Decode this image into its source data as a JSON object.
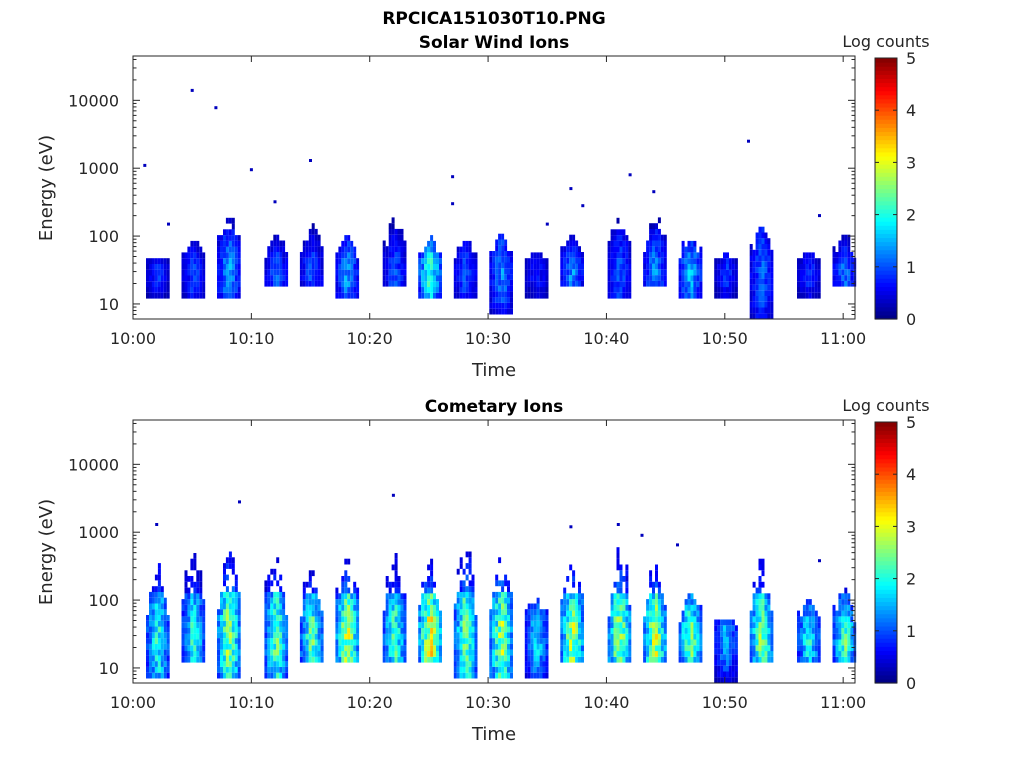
{
  "figure_title": "RPCICA151030T10.PNG",
  "chart_data": [
    {
      "type": "heatmap",
      "title": "Solar Wind Ions",
      "xlabel": "Time",
      "ylabel": "Energy (eV)",
      "y_scale": "log",
      "xlim": [
        "10:00",
        "11:01"
      ],
      "ylim": [
        6,
        45000
      ],
      "x_tick_labels": [
        "10:00",
        "10:10",
        "10:20",
        "10:30",
        "10:40",
        "10:50",
        "11:00"
      ],
      "y_tick_labels": [
        "10",
        "100",
        "1000",
        "10000"
      ],
      "y_tick_values": [
        10,
        100,
        1000,
        10000
      ],
      "colorbar": {
        "label": "Log counts",
        "range": [
          0,
          5
        ],
        "ticks": [
          "0",
          "1",
          "2",
          "3",
          "4",
          "5"
        ],
        "colormap": "jet"
      },
      "grid": false,
      "bursts": [
        {
          "t": "10:02",
          "lo": 12,
          "hi": 45,
          "peak": 1.0
        },
        {
          "t": "10:05",
          "lo": 12,
          "hi": 80,
          "peak": 1.1
        },
        {
          "t": "10:08",
          "lo": 12,
          "hi": 200,
          "peak": 1.6
        },
        {
          "t": "10:12",
          "lo": 18,
          "hi": 100,
          "peak": 1.3
        },
        {
          "t": "10:15",
          "lo": 18,
          "hi": 150,
          "peak": 1.2
        },
        {
          "t": "10:18",
          "lo": 12,
          "hi": 100,
          "peak": 1.6
        },
        {
          "t": "10:22",
          "lo": 18,
          "hi": 200,
          "peak": 1.2
        },
        {
          "t": "10:25",
          "lo": 12,
          "hi": 90,
          "peak": 2.4
        },
        {
          "t": "10:28",
          "lo": 12,
          "hi": 80,
          "peak": 1.2
        },
        {
          "t": "10:31",
          "lo": 7,
          "hi": 100,
          "peak": 1.5
        },
        {
          "t": "10:34",
          "lo": 12,
          "hi": 50,
          "peak": 0.9
        },
        {
          "t": "10:37",
          "lo": 18,
          "hi": 100,
          "peak": 1.5
        },
        {
          "t": "10:41",
          "lo": 12,
          "hi": 200,
          "peak": 1.2
        },
        {
          "t": "10:44",
          "lo": 18,
          "hi": 250,
          "peak": 1.5
        },
        {
          "t": "10:47",
          "lo": 12,
          "hi": 90,
          "peak": 1.8
        },
        {
          "t": "10:50",
          "lo": 12,
          "hi": 50,
          "peak": 1.0
        },
        {
          "t": "10:53",
          "lo": 6,
          "hi": 150,
          "peak": 1.3
        },
        {
          "t": "10:57",
          "lo": 12,
          "hi": 50,
          "peak": 1.0
        },
        {
          "t": "11:00",
          "lo": 18,
          "hi": 100,
          "peak": 1.4
        }
      ],
      "points": [
        {
          "t": "10:01",
          "e": 1100,
          "v": 0.3
        },
        {
          "t": "10:05",
          "e": 14000,
          "v": 0.3
        },
        {
          "t": "10:07",
          "e": 7800,
          "v": 0.3
        },
        {
          "t": "10:10",
          "e": 950,
          "v": 0.3
        },
        {
          "t": "10:12",
          "e": 320,
          "v": 0.3
        },
        {
          "t": "10:15",
          "e": 1300,
          "v": 0.3
        },
        {
          "t": "10:27",
          "e": 750,
          "v": 0.3
        },
        {
          "t": "10:27",
          "e": 300,
          "v": 0.3
        },
        {
          "t": "10:37",
          "e": 500,
          "v": 0.3
        },
        {
          "t": "10:38",
          "e": 280,
          "v": 0.3
        },
        {
          "t": "10:42",
          "e": 800,
          "v": 0.3
        },
        {
          "t": "10:44",
          "e": 450,
          "v": 0.3
        },
        {
          "t": "10:52",
          "e": 2500,
          "v": 0.3
        },
        {
          "t": "10:35",
          "e": 150,
          "v": 0.3
        },
        {
          "t": "10:03",
          "e": 150,
          "v": 0.3
        },
        {
          "t": "10:58",
          "e": 200,
          "v": 0.3
        }
      ]
    },
    {
      "type": "heatmap",
      "title": "Cometary Ions",
      "xlabel": "Time",
      "ylabel": "Energy (eV)",
      "y_scale": "log",
      "xlim": [
        "10:00",
        "11:01"
      ],
      "ylim": [
        6,
        45000
      ],
      "x_tick_labels": [
        "10:00",
        "10:10",
        "10:20",
        "10:30",
        "10:40",
        "10:50",
        "11:00"
      ],
      "y_tick_labels": [
        "10",
        "100",
        "1000",
        "10000"
      ],
      "y_tick_values": [
        10,
        100,
        1000,
        10000
      ],
      "colorbar": {
        "label": "Log counts",
        "range": [
          0,
          5
        ],
        "ticks": [
          "0",
          "1",
          "2",
          "3",
          "4",
          "5"
        ],
        "colormap": "jet"
      },
      "grid": false,
      "bursts": [
        {
          "t": "10:02",
          "lo": 7,
          "hi": 400,
          "peak": 2.3
        },
        {
          "t": "10:05",
          "lo": 12,
          "hi": 500,
          "peak": 2.3
        },
        {
          "t": "10:08",
          "lo": 7,
          "hi": 600,
          "peak": 3.0
        },
        {
          "t": "10:12",
          "lo": 7,
          "hi": 500,
          "peak": 2.6
        },
        {
          "t": "10:15",
          "lo": 12,
          "hi": 350,
          "peak": 2.6
        },
        {
          "t": "10:18",
          "lo": 12,
          "hi": 450,
          "peak": 3.2
        },
        {
          "t": "10:22",
          "lo": 12,
          "hi": 500,
          "peak": 2.5
        },
        {
          "t": "10:25",
          "lo": 12,
          "hi": 400,
          "peak": 3.5
        },
        {
          "t": "10:28",
          "lo": 7,
          "hi": 700,
          "peak": 2.8
        },
        {
          "t": "10:31",
          "lo": 7,
          "hi": 500,
          "peak": 3.0
        },
        {
          "t": "10:34",
          "lo": 7,
          "hi": 100,
          "peak": 2.0
        },
        {
          "t": "10:37",
          "lo": 12,
          "hi": 400,
          "peak": 3.1
        },
        {
          "t": "10:41",
          "lo": 12,
          "hi": 700,
          "peak": 3.1
        },
        {
          "t": "10:44",
          "lo": 12,
          "hi": 400,
          "peak": 3.2
        },
        {
          "t": "10:47",
          "lo": 12,
          "hi": 150,
          "peak": 2.9
        },
        {
          "t": "10:50",
          "lo": 6,
          "hi": 50,
          "peak": 1.8
        },
        {
          "t": "10:53",
          "lo": 12,
          "hi": 450,
          "peak": 2.9
        },
        {
          "t": "10:57",
          "lo": 12,
          "hi": 100,
          "peak": 2.3
        },
        {
          "t": "11:00",
          "lo": 12,
          "hi": 150,
          "peak": 2.6
        }
      ],
      "points": [
        {
          "t": "10:02",
          "e": 1300,
          "v": 0.3
        },
        {
          "t": "10:09",
          "e": 2800,
          "v": 0.3
        },
        {
          "t": "10:22",
          "e": 3500,
          "v": 0.3
        },
        {
          "t": "10:37",
          "e": 1200,
          "v": 0.3
        },
        {
          "t": "10:41",
          "e": 1300,
          "v": 0.3
        },
        {
          "t": "10:43",
          "e": 900,
          "v": 0.3
        },
        {
          "t": "10:58",
          "e": 380,
          "v": 0.3
        },
        {
          "t": "10:46",
          "e": 650,
          "v": 0.3
        }
      ]
    }
  ]
}
